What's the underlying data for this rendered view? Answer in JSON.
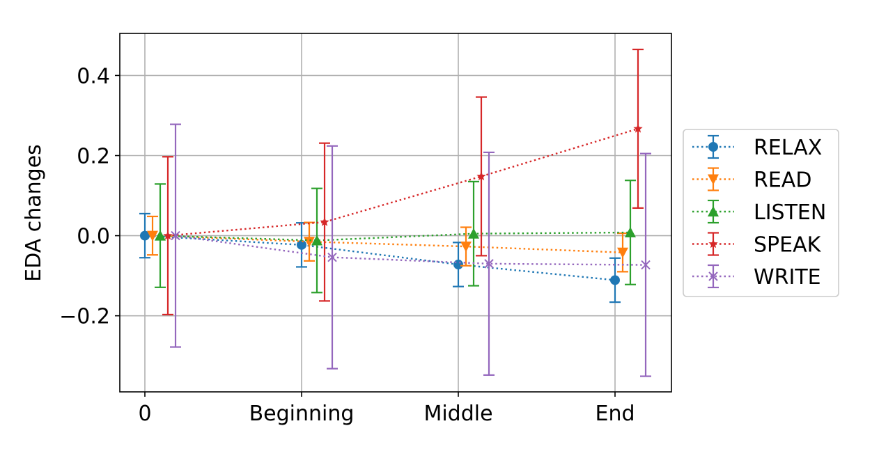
{
  "chart_data": {
    "type": "line",
    "title": "",
    "xlabel": "",
    "ylabel": "EDA changes",
    "categories": [
      "0",
      "Beginning",
      "Middle",
      "End"
    ],
    "ylim": [
      -0.39,
      0.505
    ],
    "yticks": [
      -0.2,
      0.0,
      0.2,
      0.4
    ],
    "ytick_labels": [
      "−0.2",
      "0.0",
      "0.2",
      "0.4"
    ],
    "grid": true,
    "legend_position": "right, outside plot",
    "error_bars": true,
    "series": [
      {
        "name": "RELAX",
        "color": "#1f77b4",
        "marker": "circle",
        "values": [
          0.0,
          -0.023,
          -0.072,
          -0.111
        ],
        "errors": [
          0.055,
          0.055,
          0.055,
          0.055
        ]
      },
      {
        "name": "READ",
        "color": "#ff7f0e",
        "marker": "triangle-down",
        "values": [
          0.0,
          -0.015,
          -0.027,
          -0.042
        ],
        "errors": [
          0.048,
          0.048,
          0.048,
          0.048
        ]
      },
      {
        "name": "LISTEN",
        "color": "#2ca02c",
        "marker": "triangle-up",
        "values": [
          0.0,
          -0.012,
          0.005,
          0.008
        ],
        "errors": [
          0.129,
          0.13,
          0.13,
          0.13
        ]
      },
      {
        "name": "SPEAK",
        "color": "#d62728",
        "marker": "star",
        "values": [
          0.0,
          0.034,
          0.148,
          0.267
        ],
        "errors": [
          0.197,
          0.197,
          0.198,
          0.198
        ]
      },
      {
        "name": "WRITE",
        "color": "#9467bd",
        "marker": "x",
        "values": [
          0.0,
          -0.054,
          -0.07,
          -0.073
        ],
        "errors": [
          0.278,
          0.278,
          0.278,
          0.278
        ]
      }
    ]
  }
}
